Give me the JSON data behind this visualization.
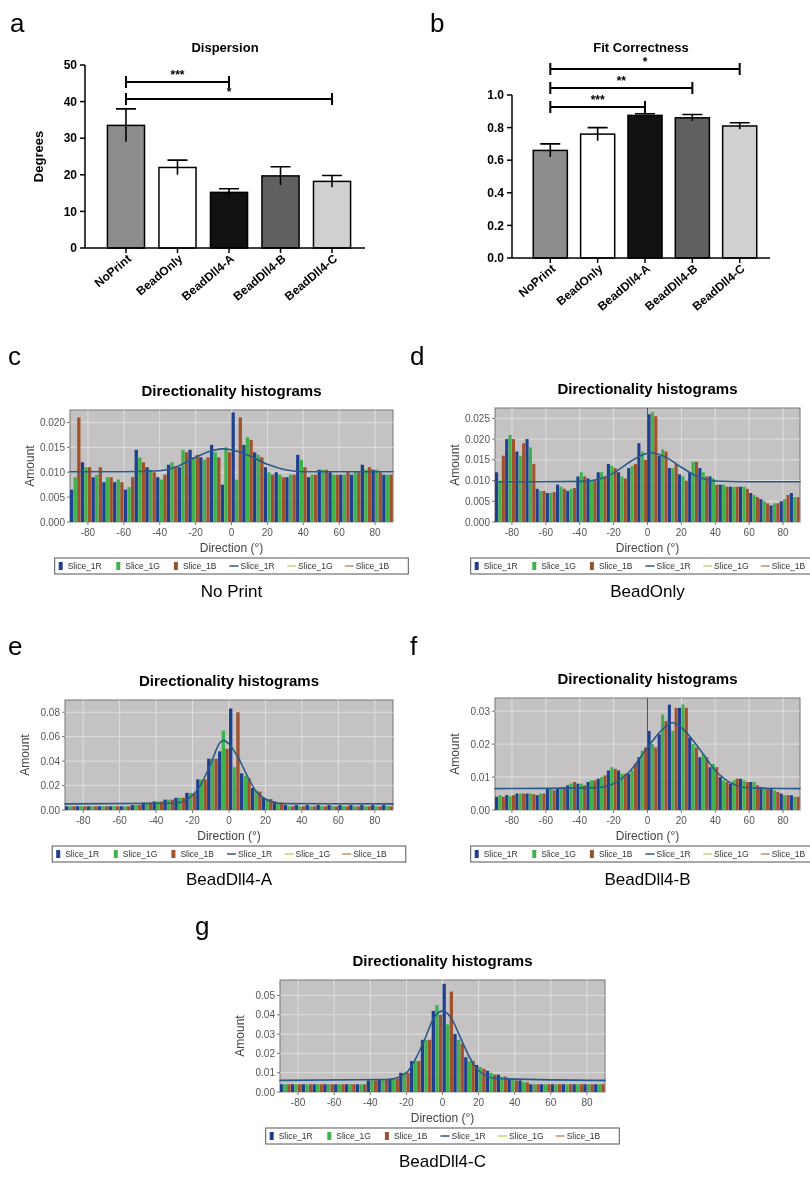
{
  "chart_data": [
    {
      "type": "bar",
      "title": "Dispersion",
      "ylabel": "Degrees",
      "categories": [
        "NoPrint",
        "BeadOnly",
        "BeadDll4-A",
        "BeadDll4-B",
        "BeadDll4-C"
      ],
      "values": [
        33.5,
        22,
        15.2,
        19.7,
        18.2
      ],
      "errors": [
        4.5,
        2,
        1,
        2.5,
        1.6
      ],
      "colors": [
        "#8c8c8c",
        "#ffffff",
        "#111111",
        "#606060",
        "#d0d0d0"
      ],
      "ylim": [
        0,
        50
      ],
      "yticks": [
        0,
        10,
        20,
        30,
        40,
        50
      ],
      "annotations": [
        "a",
        "***",
        "*"
      ]
    },
    {
      "type": "bar",
      "title": "Fit Correctness",
      "categories": [
        "NoPrint",
        "BeadOnly",
        "BeadDll4-A",
        "BeadDll4-B",
        "BeadDll4-C"
      ],
      "values": [
        0.66,
        0.76,
        0.875,
        0.86,
        0.81
      ],
      "errors": [
        0.04,
        0.04,
        0.01,
        0.02,
        0.02
      ],
      "colors": [
        "#8c8c8c",
        "#ffffff",
        "#111111",
        "#606060",
        "#d0d0d0"
      ],
      "ylim": [
        0,
        1
      ],
      "yticks": [
        {
          "value": 0,
          "label": "0.0"
        },
        0.2,
        0.4,
        0.6,
        0.8,
        {
          "value": 1,
          "label": "1.0"
        }
      ],
      "annotations": [
        "b",
        "***",
        "**",
        "*"
      ]
    },
    {
      "type": "bar",
      "title": "Directionality histograms",
      "xlabel": "Direction (°)",
      "ylabel": "Amount",
      "x": [
        -87,
        -81,
        -75,
        -69,
        -63,
        -57,
        -51,
        -45,
        -39,
        -33,
        -27,
        -21,
        -15,
        -9,
        -3,
        3,
        9,
        15,
        21,
        27,
        33,
        39,
        45,
        51,
        57,
        63,
        69,
        75,
        81,
        87
      ],
      "xlim": [
        -90,
        90
      ],
      "xticks": [
        -80,
        -60,
        -40,
        -20,
        0,
        20,
        40,
        60,
        80
      ],
      "ylim": [
        0,
        0.0225
      ],
      "yticks": [
        {
          "value": 0,
          "label": "0.000"
        },
        {
          "value": 0.005,
          "label": "0.005"
        },
        {
          "value": 0.01,
          "label": "0.010"
        },
        {
          "value": 0.015,
          "label": "0.015"
        },
        {
          "value": 0.02,
          "label": "0.020"
        }
      ],
      "grid": true,
      "legend": "bottom",
      "series": [
        {
          "name": "Slice_1R",
          "color": "#1f3f8f",
          "values": [
            0.0065,
            0.012,
            0.009,
            0.008,
            0.008,
            0.0065,
            0.0145,
            0.011,
            0.009,
            0.0115,
            0.011,
            0.0145,
            0.013,
            0.0155,
            0.0075,
            0.022,
            0.0155,
            0.014,
            0.011,
            0.01,
            0.009,
            0.0135,
            0.009,
            0.0105,
            0.01,
            0.0095,
            0.0095,
            0.0115,
            0.0105,
            0.0095
          ]
        },
        {
          "name": "Slice_1G",
          "color": "#3cb44b",
          "values": [
            0.009,
            0.011,
            0.0095,
            0.009,
            0.0085,
            0.007,
            0.013,
            0.0105,
            0.0085,
            0.012,
            0.0145,
            0.013,
            0.0125,
            0.014,
            0.015,
            0.0085,
            0.017,
            0.0135,
            0.01,
            0.0095,
            0.0095,
            0.0125,
            0.0095,
            0.0105,
            0.0095,
            0.0095,
            0.01,
            0.0105,
            0.0105,
            0.0095
          ]
        },
        {
          "name": "Slice_1B",
          "color": "#a0522d",
          "values": [
            0.021,
            0.011,
            0.011,
            0.009,
            0.008,
            0.009,
            0.012,
            0.01,
            0.0095,
            0.011,
            0.014,
            0.0135,
            0.013,
            0.013,
            0.014,
            0.021,
            0.0165,
            0.013,
            0.0095,
            0.009,
            0.0095,
            0.011,
            0.0095,
            0.0105,
            0.0095,
            0.01,
            0.01,
            0.011,
            0.01,
            0.0095
          ]
        },
        {
          "name": "Slice_1R",
          "type": "line",
          "color": "#2a5a8a",
          "x": [
            -90,
            -60,
            -40,
            -30,
            -20,
            -10,
            -5,
            0,
            10,
            20,
            30,
            40,
            60,
            90
          ],
          "values": [
            0.0101,
            0.0101,
            0.0103,
            0.0112,
            0.013,
            0.0144,
            0.0147,
            0.0145,
            0.0133,
            0.0116,
            0.0105,
            0.0101,
            0.0101,
            0.0101
          ]
        },
        {
          "name": "Slice_1G",
          "type": "line",
          "color": "#c8d070",
          "values": [
            null,
            null,
            null,
            null,
            null,
            null,
            null,
            null,
            null,
            null,
            null,
            null,
            null,
            null,
            null,
            null,
            null,
            null,
            null,
            null,
            null,
            null,
            null,
            null,
            null,
            null,
            null,
            null,
            null,
            null
          ]
        },
        {
          "name": "Slice_1B",
          "type": "line",
          "color": "#c89060",
          "values": [
            null,
            null,
            null,
            null,
            null,
            null,
            null,
            null,
            null,
            null,
            null,
            null,
            null,
            null,
            null,
            null,
            null,
            null,
            null,
            null,
            null,
            null,
            null,
            null,
            null,
            null,
            null,
            null,
            null,
            null
          ]
        }
      ],
      "annotations": [
        "c",
        "No Print"
      ]
    },
    {
      "type": "bar",
      "title": "Directionality histograms",
      "xlabel": "Direction (°)",
      "ylabel": "Amount",
      "x": [
        -87,
        -81,
        -75,
        -69,
        -63,
        -57,
        -51,
        -45,
        -39,
        -33,
        -27,
        -21,
        -15,
        -9,
        -3,
        3,
        9,
        15,
        21,
        27,
        33,
        39,
        45,
        51,
        57,
        63,
        69,
        75,
        81,
        87
      ],
      "xlim": [
        -90,
        90
      ],
      "xticks": [
        -80,
        -60,
        -40,
        -20,
        0,
        20,
        40,
        60,
        80
      ],
      "ylim": [
        0,
        0.0275
      ],
      "yticks": [
        {
          "value": 0,
          "label": "0.000"
        },
        {
          "value": 0.005,
          "label": "0.005"
        },
        {
          "value": 0.01,
          "label": "0.010"
        },
        {
          "value": 0.015,
          "label": "0.015"
        },
        {
          "value": 0.02,
          "label": "0.020"
        },
        {
          "value": 0.025,
          "label": "0.025"
        }
      ],
      "grid": true,
      "legend": "bottom",
      "series": [
        {
          "name": "Slice_1R",
          "color": "#1f3f8f",
          "values": [
            0.012,
            0.02,
            0.017,
            0.02,
            0.008,
            0.007,
            0.009,
            0.0075,
            0.011,
            0.0105,
            0.012,
            0.014,
            0.012,
            0.013,
            0.019,
            0.026,
            0.016,
            0.013,
            0.0115,
            0.012,
            0.013,
            0.011,
            0.009,
            0.0085,
            0.0085,
            0.007,
            0.0055,
            0.004,
            0.005,
            0.007
          ]
        },
        {
          "name": "Slice_1G",
          "color": "#3cb44b",
          "values": [
            0.01,
            0.021,
            0.016,
            0.018,
            0.0075,
            0.007,
            0.0085,
            0.008,
            0.012,
            0.01,
            0.012,
            0.0135,
            0.011,
            0.0135,
            0.017,
            0.0265,
            0.0175,
            0.013,
            0.011,
            0.0145,
            0.012,
            0.0105,
            0.009,
            0.0085,
            0.0085,
            0.0065,
            0.005,
            0.0045,
            0.0055,
            0.006
          ]
        },
        {
          "name": "Slice_1B",
          "color": "#a0522d",
          "values": [
            0.016,
            0.02,
            0.019,
            0.014,
            0.0075,
            0.0072,
            0.008,
            0.0082,
            0.011,
            0.01,
            0.011,
            0.013,
            0.0105,
            0.014,
            0.015,
            0.0255,
            0.017,
            0.014,
            0.01,
            0.0145,
            0.011,
            0.009,
            0.0085,
            0.0085,
            0.008,
            0.006,
            0.0045,
            0.0045,
            0.0065,
            0.006
          ]
        },
        {
          "name": "Slice_1R",
          "type": "line",
          "color": "#2a5a8a",
          "x": [
            -90,
            -40,
            -30,
            -20,
            -10,
            0,
            2,
            10,
            20,
            30,
            40,
            60,
            90
          ],
          "values": [
            0.0097,
            0.0098,
            0.0102,
            0.0118,
            0.0146,
            0.0166,
            0.0167,
            0.0158,
            0.0132,
            0.0109,
            0.0099,
            0.0097,
            0.0097
          ]
        },
        {
          "name": "Slice_1G",
          "type": "line",
          "color": "#c8d070",
          "values": [
            null,
            null,
            null,
            null,
            null,
            null,
            null,
            null,
            null,
            null,
            null,
            null,
            null,
            null,
            null,
            null,
            null,
            null,
            null,
            null,
            null,
            null,
            null,
            null,
            null,
            null,
            null,
            null,
            null,
            null
          ]
        },
        {
          "name": "Slice_1B",
          "type": "line",
          "color": "#c89060",
          "values": [
            null,
            null,
            null,
            null,
            null,
            null,
            null,
            null,
            null,
            null,
            null,
            null,
            null,
            null,
            null,
            null,
            null,
            null,
            null,
            null,
            null,
            null,
            null,
            null,
            null,
            null,
            null,
            null,
            null,
            null
          ]
        }
      ],
      "ref_lines": [
        {
          "axis": "x",
          "value": 0,
          "color": "#555555"
        }
      ],
      "annotations": [
        "d",
        "BeadOnly"
      ]
    },
    {
      "type": "bar",
      "title": "Directionality histograms",
      "xlabel": "Direction (°)",
      "ylabel": "Amount",
      "x": [
        -87,
        -81,
        -75,
        -69,
        -63,
        -57,
        -51,
        -45,
        -39,
        -33,
        -27,
        -21,
        -15,
        -9,
        -3,
        3,
        9,
        15,
        21,
        27,
        33,
        39,
        45,
        51,
        57,
        63,
        69,
        75,
        81,
        87
      ],
      "xlim": [
        -90,
        90
      ],
      "xticks": [
        -80,
        -60,
        -40,
        -20,
        0,
        20,
        40,
        60,
        80
      ],
      "ylim": [
        0,
        0.09
      ],
      "yticks": [
        {
          "value": 0,
          "label": "0.00"
        },
        {
          "value": 0.02,
          "label": "0.02"
        },
        {
          "value": 0.04,
          "label": "0.04"
        },
        {
          "value": 0.06,
          "label": "0.06"
        },
        {
          "value": 0.08,
          "label": "0.08"
        }
      ],
      "grid": true,
      "legend": "bottom",
      "series": [
        {
          "name": "Slice_1R",
          "color": "#1f3f8f",
          "values": [
            0.003,
            0.003,
            0.003,
            0.003,
            0.003,
            0.003,
            0.004,
            0.006,
            0.007,
            0.0085,
            0.01,
            0.014,
            0.025,
            0.042,
            0.048,
            0.083,
            0.03,
            0.018,
            0.01,
            0.007,
            0.004,
            0.004,
            0.004,
            0.004,
            0.004,
            0.004,
            0.004,
            0.004,
            0.004,
            0.004
          ]
        },
        {
          "name": "Slice_1G",
          "color": "#3cb44b",
          "values": [
            0.003,
            0.003,
            0.003,
            0.003,
            0.003,
            0.003,
            0.004,
            0.006,
            0.007,
            0.0085,
            0.01,
            0.014,
            0.025,
            0.042,
            0.065,
            0.035,
            0.028,
            0.016,
            0.009,
            0.006,
            0.003,
            0.003,
            0.003,
            0.003,
            0.003,
            0.003,
            0.003,
            0.003,
            0.003,
            0.003
          ]
        },
        {
          "name": "Slice_1B",
          "color": "#a0522d",
          "values": [
            0.003,
            0.003,
            0.003,
            0.003,
            0.003,
            0.003,
            0.004,
            0.006,
            0.007,
            0.0085,
            0.01,
            0.014,
            0.025,
            0.042,
            0.05,
            0.08,
            0.026,
            0.015,
            0.009,
            0.006,
            0.003,
            0.003,
            0.003,
            0.003,
            0.003,
            0.003,
            0.003,
            0.003,
            0.003,
            0.003
          ]
        },
        {
          "name": "Slice_1R",
          "type": "line",
          "color": "#2a5a8a",
          "x": [
            -90,
            -30,
            -20,
            -15,
            -10,
            -5,
            -3,
            0,
            5,
            10,
            15,
            20,
            30,
            90
          ],
          "values": [
            0.005,
            0.0055,
            0.012,
            0.022,
            0.038,
            0.055,
            0.057,
            0.054,
            0.043,
            0.028,
            0.015,
            0.009,
            0.0052,
            0.005
          ]
        },
        {
          "name": "Slice_1G",
          "type": "line",
          "color": "#c8d070",
          "values": [
            null,
            null,
            null,
            null,
            null,
            null,
            null,
            null,
            null,
            null,
            null,
            null,
            null,
            null,
            null,
            null,
            null,
            null,
            null,
            null,
            null,
            null,
            null,
            null,
            null,
            null,
            null,
            null,
            null,
            null
          ]
        },
        {
          "name": "Slice_1B",
          "type": "line",
          "color": "#c89060",
          "values": [
            null,
            null,
            null,
            null,
            null,
            null,
            null,
            null,
            null,
            null,
            null,
            null,
            null,
            null,
            null,
            null,
            null,
            null,
            null,
            null,
            null,
            null,
            null,
            null,
            null,
            null,
            null,
            null,
            null,
            null
          ]
        }
      ],
      "annotations": [
        "e",
        "BeadDll4-A"
      ]
    },
    {
      "type": "bar",
      "title": "Directionality histograms",
      "xlabel": "Direction (°)",
      "ylabel": "Amount",
      "x": [
        -87,
        -81,
        -75,
        -69,
        -63,
        -57,
        -51,
        -45,
        -39,
        -33,
        -27,
        -21,
        -15,
        -9,
        -3,
        3,
        9,
        15,
        21,
        27,
        33,
        39,
        45,
        51,
        57,
        63,
        69,
        75,
        81,
        87
      ],
      "xlim": [
        -90,
        90
      ],
      "xticks": [
        -80,
        -60,
        -40,
        -20,
        0,
        20,
        40,
        60,
        80
      ],
      "ylim": [
        0,
        0.034
      ],
      "yticks": [
        {
          "value": 0,
          "label": "0.00"
        },
        {
          "value": 0.01,
          "label": "0.01"
        },
        {
          "value": 0.02,
          "label": "0.02"
        },
        {
          "value": 0.03,
          "label": "0.03"
        }
      ],
      "grid": true,
      "legend": "bottom",
      "series": [
        {
          "name": "Slice_1R",
          "color": "#1f3f8f",
          "values": [
            0.004,
            0.0045,
            0.005,
            0.005,
            0.0045,
            0.0065,
            0.0065,
            0.0075,
            0.008,
            0.0085,
            0.0095,
            0.012,
            0.012,
            0.011,
            0.016,
            0.024,
            0.023,
            0.032,
            0.031,
            0.022,
            0.016,
            0.013,
            0.01,
            0.008,
            0.0095,
            0.0085,
            0.007,
            0.0065,
            0.005,
            0.0045
          ]
        },
        {
          "name": "Slice_1G",
          "color": "#3cb44b",
          "values": [
            0.0045,
            0.0042,
            0.005,
            0.005,
            0.005,
            0.0065,
            0.007,
            0.008,
            0.008,
            0.009,
            0.01,
            0.013,
            0.011,
            0.012,
            0.018,
            0.02,
            0.029,
            0.024,
            0.032,
            0.02,
            0.017,
            0.014,
            0.009,
            0.009,
            0.009,
            0.0085,
            0.007,
            0.006,
            0.0045,
            0.004
          ]
        },
        {
          "name": "Slice_1B",
          "color": "#a0522d",
          "values": [
            0.004,
            0.0045,
            0.005,
            0.0048,
            0.005,
            0.006,
            0.007,
            0.0085,
            0.0075,
            0.009,
            0.0105,
            0.0125,
            0.011,
            0.014,
            0.019,
            0.019,
            0.027,
            0.031,
            0.031,
            0.019,
            0.016,
            0.013,
            0.0085,
            0.0095,
            0.0085,
            0.0075,
            0.0065,
            0.0055,
            0.0045,
            0.004
          ]
        },
        {
          "name": "Slice_1R",
          "type": "line",
          "color": "#2a5a8a",
          "x": [
            -90,
            -30,
            -20,
            -10,
            0,
            10,
            15,
            20,
            30,
            40,
            50,
            60,
            90
          ],
          "values": [
            0.0065,
            0.0068,
            0.008,
            0.012,
            0.019,
            0.025,
            0.0265,
            0.025,
            0.019,
            0.012,
            0.008,
            0.0067,
            0.0065
          ]
        },
        {
          "name": "Slice_1G",
          "type": "line",
          "color": "#c8d070",
          "values": [
            null,
            null,
            null,
            null,
            null,
            null,
            null,
            null,
            null,
            null,
            null,
            null,
            null,
            null,
            null,
            null,
            null,
            null,
            null,
            null,
            null,
            null,
            null,
            null,
            null,
            null,
            null,
            null,
            null,
            null
          ]
        },
        {
          "name": "Slice_1B",
          "type": "line",
          "color": "#c89060",
          "values": [
            null,
            null,
            null,
            null,
            null,
            null,
            null,
            null,
            null,
            null,
            null,
            null,
            null,
            null,
            null,
            null,
            null,
            null,
            null,
            null,
            null,
            null,
            null,
            null,
            null,
            null,
            null,
            null,
            null,
            null
          ]
        }
      ],
      "ref_lines": [
        {
          "axis": "x",
          "value": 0,
          "color": "#555555"
        }
      ],
      "annotations": [
        "f",
        "BeadDll4-B"
      ]
    },
    {
      "type": "bar",
      "title": "Directionality histograms",
      "xlabel": "Direction (°)",
      "ylabel": "Amount",
      "x": [
        -87,
        -81,
        -75,
        -69,
        -63,
        -57,
        -51,
        -45,
        -39,
        -33,
        -27,
        -21,
        -15,
        -9,
        -3,
        3,
        9,
        15,
        21,
        27,
        33,
        39,
        45,
        51,
        57,
        63,
        69,
        75,
        81,
        87
      ],
      "xlim": [
        -90,
        90
      ],
      "xticks": [
        -80,
        -60,
        -40,
        -20,
        0,
        20,
        40,
        60,
        80
      ],
      "ylim": [
        0,
        0.058
      ],
      "yticks": [
        {
          "value": 0,
          "label": "0.00"
        },
        {
          "value": 0.01,
          "label": "0.01"
        },
        {
          "value": 0.02,
          "label": "0.02"
        },
        {
          "value": 0.03,
          "label": "0.03"
        },
        {
          "value": 0.04,
          "label": "0.04"
        },
        {
          "value": 0.05,
          "label": "0.05"
        }
      ],
      "grid": true,
      "legend": "bottom",
      "series": [
        {
          "name": "Slice_1R",
          "color": "#1f3f8f",
          "values": [
            0.004,
            0.004,
            0.004,
            0.004,
            0.004,
            0.004,
            0.004,
            0.004,
            0.006,
            0.0065,
            0.007,
            0.01,
            0.016,
            0.027,
            0.042,
            0.056,
            0.03,
            0.018,
            0.014,
            0.011,
            0.009,
            0.007,
            0.006,
            0.004,
            0.004,
            0.004,
            0.004,
            0.004,
            0.004,
            0.004
          ]
        },
        {
          "name": "Slice_1G",
          "color": "#3cb44b",
          "values": [
            0.004,
            0.004,
            0.004,
            0.004,
            0.004,
            0.004,
            0.004,
            0.004,
            0.006,
            0.0065,
            0.007,
            0.01,
            0.016,
            0.027,
            0.045,
            0.035,
            0.027,
            0.016,
            0.013,
            0.01,
            0.008,
            0.007,
            0.005,
            0.004,
            0.004,
            0.004,
            0.004,
            0.004,
            0.004,
            0.004
          ]
        },
        {
          "name": "Slice_1B",
          "color": "#a0522d",
          "values": [
            0.004,
            0.004,
            0.004,
            0.004,
            0.004,
            0.004,
            0.004,
            0.004,
            0.006,
            0.0065,
            0.007,
            0.01,
            0.016,
            0.027,
            0.04,
            0.052,
            0.025,
            0.016,
            0.012,
            0.009,
            0.008,
            0.006,
            0.005,
            0.004,
            0.004,
            0.004,
            0.004,
            0.004,
            0.004,
            0.004
          ]
        },
        {
          "name": "Slice_1R",
          "type": "line",
          "color": "#2a5a8a",
          "x": [
            -90,
            -30,
            -20,
            -15,
            -10,
            -5,
            0,
            5,
            10,
            15,
            20,
            30,
            90
          ],
          "values": [
            0.006,
            0.0065,
            0.01,
            0.017,
            0.027,
            0.038,
            0.042,
            0.038,
            0.028,
            0.018,
            0.011,
            0.007,
            0.006
          ]
        },
        {
          "name": "Slice_1G",
          "type": "line",
          "color": "#c8d070",
          "values": [
            null,
            null,
            null,
            null,
            null,
            null,
            null,
            null,
            null,
            null,
            null,
            null,
            null,
            null,
            null,
            null,
            null,
            null,
            null,
            null,
            null,
            null,
            null,
            null,
            null,
            null,
            null,
            null,
            null,
            null
          ]
        },
        {
          "name": "Slice_1B",
          "type": "line",
          "color": "#c89060",
          "values": [
            null,
            null,
            null,
            null,
            null,
            null,
            null,
            null,
            null,
            null,
            null,
            null,
            null,
            null,
            null,
            null,
            null,
            null,
            null,
            null,
            null,
            null,
            null,
            null,
            null,
            null,
            null,
            null,
            null,
            null
          ]
        }
      ],
      "annotations": [
        "g",
        "BeadDll4-C"
      ]
    }
  ]
}
